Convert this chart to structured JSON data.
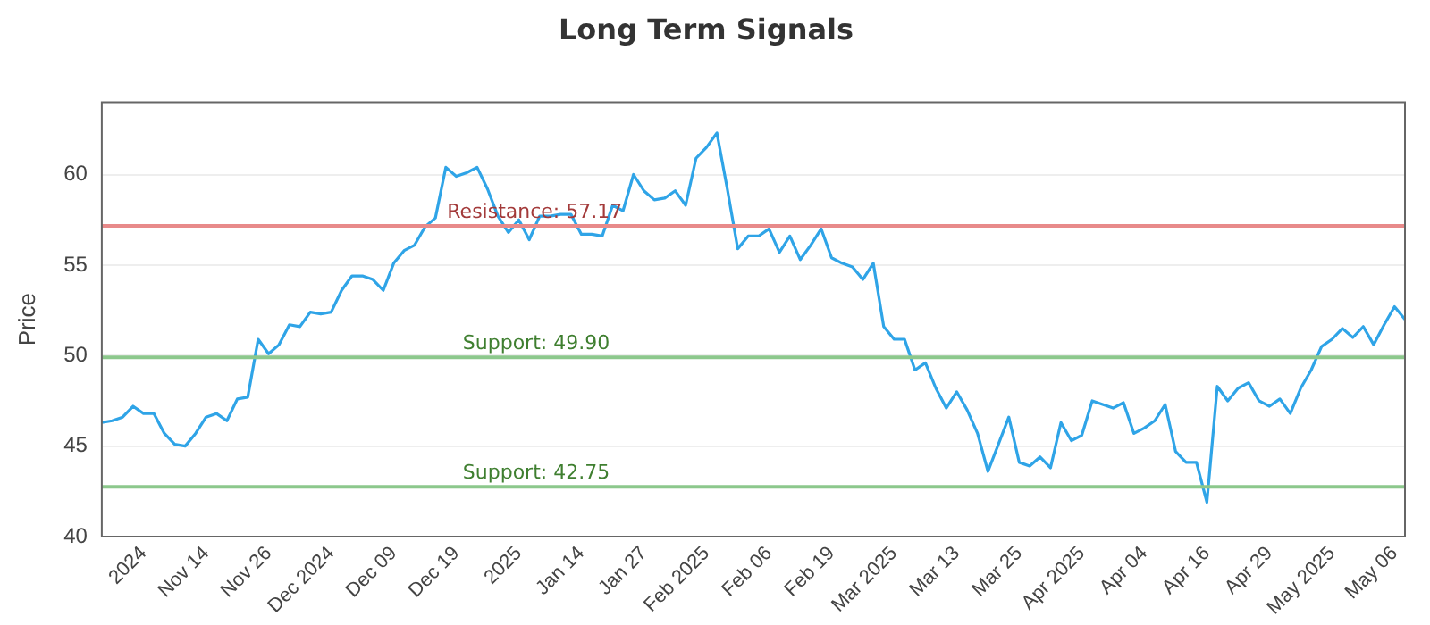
{
  "chart_data": {
    "type": "line",
    "title": "Long Term Signals",
    "ylabel": "Price",
    "categories": [
      null,
      null,
      null,
      null,
      "2024",
      null,
      null,
      null,
      null,
      null,
      "Nov 14",
      null,
      null,
      null,
      null,
      null,
      "Nov 26",
      null,
      null,
      null,
      null,
      null,
      "Dec 2024",
      null,
      null,
      null,
      null,
      null,
      "Dec 09",
      null,
      null,
      null,
      null,
      null,
      "Dec 19",
      null,
      null,
      null,
      null,
      null,
      "2025",
      null,
      null,
      null,
      null,
      null,
      "Jan 14",
      null,
      null,
      null,
      null,
      null,
      "Jan 27",
      null,
      null,
      null,
      null,
      null,
      "Feb 2025",
      null,
      null,
      null,
      null,
      null,
      "Feb 06",
      null,
      null,
      null,
      null,
      null,
      "Feb 19",
      null,
      null,
      null,
      null,
      null,
      "Mar 2025",
      null,
      null,
      null,
      null,
      null,
      "Mar 13",
      null,
      null,
      null,
      null,
      null,
      "Mar 25",
      null,
      null,
      null,
      null,
      null,
      "Apr 2025",
      null,
      null,
      null,
      null,
      null,
      "Apr 04",
      null,
      null,
      null,
      null,
      null,
      "Apr 16",
      null,
      null,
      null,
      null,
      null,
      "Apr 29",
      null,
      null,
      null,
      null,
      null,
      "May 2025",
      null,
      null,
      null,
      null,
      null,
      "May 06",
      null
    ],
    "series": [
      {
        "color": "#2fa4e7",
        "values": [
          46.3,
          46.4,
          46.6,
          47.2,
          46.8,
          46.8,
          45.7,
          45.1,
          45.0,
          45.7,
          46.6,
          46.8,
          46.4,
          47.6,
          47.7,
          50.9,
          50.1,
          50.6,
          51.7,
          51.6,
          52.4,
          52.3,
          52.4,
          53.6,
          54.4,
          54.4,
          54.2,
          53.6,
          55.1,
          55.8,
          56.1,
          57.1,
          57.6,
          60.4,
          59.9,
          60.1,
          60.4,
          59.2,
          57.7,
          56.8,
          57.5,
          56.4,
          57.7,
          57.7,
          57.8,
          57.8,
          56.7,
          56.7,
          56.6,
          58.3,
          58.0,
          60.0,
          59.1,
          58.6,
          58.7,
          59.1,
          58.3,
          60.9,
          61.5,
          62.3,
          59.2,
          55.9,
          56.6,
          56.6,
          57.0,
          55.7,
          56.6,
          55.3,
          56.1,
          57.0,
          55.4,
          55.1,
          54.9,
          54.2,
          55.1,
          51.6,
          50.9,
          50.9,
          49.2,
          49.6,
          48.2,
          47.1,
          48.0,
          47.0,
          45.7,
          43.6,
          45.1,
          46.6,
          44.1,
          43.9,
          44.4,
          43.8,
          46.3,
          45.3,
          45.6,
          47.5,
          47.3,
          47.1,
          47.4,
          45.7,
          46.0,
          46.4,
          47.3,
          44.7,
          44.1,
          44.1,
          41.9,
          48.3,
          47.5,
          48.2,
          48.5,
          47.5,
          47.2,
          47.6,
          46.8,
          48.2,
          49.2,
          50.5,
          50.9,
          51.5,
          51.0,
          51.6,
          50.6,
          51.7,
          52.7,
          52.0
        ]
      }
    ],
    "ylim": [
      40,
      64
    ],
    "yticks": [
      40,
      45,
      50,
      55,
      60
    ],
    "grid": "y",
    "legend": false,
    "marker": "none",
    "line_style": "solid",
    "ref_lines": [
      {
        "axis": "y",
        "value": 57.17,
        "label": "Resistance: 57.17",
        "color": "#e88a8a"
      },
      {
        "axis": "y",
        "value": 49.9,
        "label": "Support: 49.90",
        "color": "#8cc88c"
      },
      {
        "axis": "y",
        "value": 42.75,
        "label": "Support: 42.75",
        "color": "#8cc88c"
      }
    ]
  }
}
